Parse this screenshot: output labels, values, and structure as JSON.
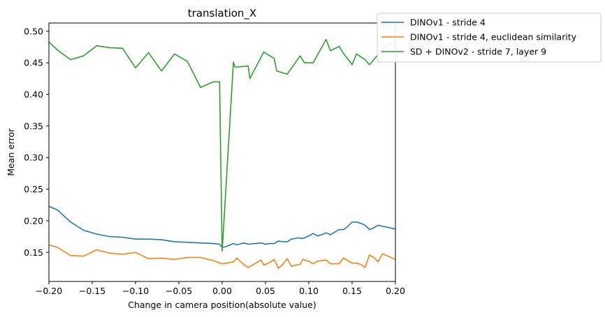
{
  "chart_data": {
    "type": "line",
    "title": "translation_X",
    "xlabel": "Change in camera position(absolute value)",
    "ylabel": "Mean error",
    "xlim": [
      -0.2,
      0.2
    ],
    "ylim": [
      0.104,
      0.513
    ],
    "xticks": [
      -0.2,
      -0.15,
      -0.1,
      -0.05,
      0.0,
      0.05,
      0.1,
      0.15,
      0.2
    ],
    "xtick_labels": [
      "−0.20",
      "−0.15",
      "−0.10",
      "−0.05",
      "0.00",
      "0.05",
      "0.10",
      "0.15",
      "0.20"
    ],
    "yticks": [
      0.15,
      0.2,
      0.25,
      0.3,
      0.35,
      0.4,
      0.45,
      0.5
    ],
    "ytick_labels": [
      "0.15",
      "0.20",
      "0.25",
      "0.30",
      "0.35",
      "0.40",
      "0.45",
      "0.50"
    ],
    "grid": false,
    "legend_position": "top-right, outside plot",
    "series": [
      {
        "name": "DINOv1 - stride 4",
        "color": "#1f77b4",
        "points": [
          [
            -0.2,
            0.223
          ],
          [
            -0.19,
            0.217
          ],
          [
            -0.175,
            0.198
          ],
          [
            -0.16,
            0.185
          ],
          [
            -0.145,
            0.179
          ],
          [
            -0.13,
            0.175
          ],
          [
            -0.115,
            0.174
          ],
          [
            -0.1,
            0.171
          ],
          [
            -0.085,
            0.171
          ],
          [
            -0.07,
            0.17
          ],
          [
            -0.055,
            0.167
          ],
          [
            -0.04,
            0.166
          ],
          [
            -0.025,
            0.165
          ],
          [
            -0.01,
            0.164
          ],
          [
            -0.003,
            0.163
          ],
          [
            0.0,
            0.158
          ],
          [
            0.004,
            0.159
          ],
          [
            0.013,
            0.164
          ],
          [
            0.017,
            0.162
          ],
          [
            0.025,
            0.165
          ],
          [
            0.03,
            0.163
          ],
          [
            0.038,
            0.164
          ],
          [
            0.045,
            0.165
          ],
          [
            0.05,
            0.163
          ],
          [
            0.055,
            0.164
          ],
          [
            0.06,
            0.164
          ],
          [
            0.065,
            0.168
          ],
          [
            0.07,
            0.167
          ],
          [
            0.075,
            0.167
          ],
          [
            0.08,
            0.171
          ],
          [
            0.088,
            0.173
          ],
          [
            0.093,
            0.172
          ],
          [
            0.1,
            0.176
          ],
          [
            0.105,
            0.18
          ],
          [
            0.11,
            0.176
          ],
          [
            0.115,
            0.178
          ],
          [
            0.12,
            0.181
          ],
          [
            0.125,
            0.178
          ],
          [
            0.13,
            0.182
          ],
          [
            0.135,
            0.186
          ],
          [
            0.14,
            0.186
          ],
          [
            0.145,
            0.191
          ],
          [
            0.15,
            0.198
          ],
          [
            0.155,
            0.198
          ],
          [
            0.16,
            0.196
          ],
          [
            0.165,
            0.193
          ],
          [
            0.17,
            0.186
          ],
          [
            0.175,
            0.189
          ],
          [
            0.18,
            0.193
          ],
          [
            0.19,
            0.19
          ],
          [
            0.2,
            0.187
          ]
        ]
      },
      {
        "name": "DINOv1 - stride 4, euclidean similarity",
        "color": "#ff7f0e",
        "points": [
          [
            -0.2,
            0.162
          ],
          [
            -0.19,
            0.158
          ],
          [
            -0.175,
            0.145
          ],
          [
            -0.16,
            0.144
          ],
          [
            -0.145,
            0.154
          ],
          [
            -0.13,
            0.149
          ],
          [
            -0.115,
            0.147
          ],
          [
            -0.1,
            0.15
          ],
          [
            -0.085,
            0.14
          ],
          [
            -0.07,
            0.141
          ],
          [
            -0.055,
            0.139
          ],
          [
            -0.04,
            0.142
          ],
          [
            -0.025,
            0.142
          ],
          [
            -0.01,
            0.137
          ],
          [
            0.0,
            0.132
          ],
          [
            0.013,
            0.135
          ],
          [
            0.017,
            0.141
          ],
          [
            0.023,
            0.133
          ],
          [
            0.03,
            0.126
          ],
          [
            0.035,
            0.13
          ],
          [
            0.045,
            0.138
          ],
          [
            0.048,
            0.13
          ],
          [
            0.055,
            0.134
          ],
          [
            0.06,
            0.139
          ],
          [
            0.065,
            0.125
          ],
          [
            0.07,
            0.131
          ],
          [
            0.075,
            0.14
          ],
          [
            0.08,
            0.128
          ],
          [
            0.085,
            0.13
          ],
          [
            0.09,
            0.131
          ],
          [
            0.093,
            0.139
          ],
          [
            0.1,
            0.136
          ],
          [
            0.105,
            0.132
          ],
          [
            0.11,
            0.136
          ],
          [
            0.115,
            0.137
          ],
          [
            0.12,
            0.138
          ],
          [
            0.125,
            0.132
          ],
          [
            0.13,
            0.132
          ],
          [
            0.135,
            0.132
          ],
          [
            0.14,
            0.141
          ],
          [
            0.145,
            0.137
          ],
          [
            0.15,
            0.133
          ],
          [
            0.155,
            0.133
          ],
          [
            0.16,
            0.131
          ],
          [
            0.165,
            0.126
          ],
          [
            0.17,
            0.146
          ],
          [
            0.175,
            0.142
          ],
          [
            0.18,
            0.135
          ],
          [
            0.185,
            0.148
          ],
          [
            0.19,
            0.145
          ],
          [
            0.2,
            0.139
          ]
        ]
      },
      {
        "name": "SD + DINOv2 - stride 7, layer 9",
        "color": "#2ca02c",
        "points": [
          [
            -0.2,
            0.483
          ],
          [
            -0.19,
            0.47
          ],
          [
            -0.175,
            0.455
          ],
          [
            -0.16,
            0.461
          ],
          [
            -0.145,
            0.477
          ],
          [
            -0.13,
            0.474
          ],
          [
            -0.115,
            0.473
          ],
          [
            -0.1,
            0.442
          ],
          [
            -0.085,
            0.466
          ],
          [
            -0.07,
            0.437
          ],
          [
            -0.055,
            0.464
          ],
          [
            -0.04,
            0.452
          ],
          [
            -0.025,
            0.411
          ],
          [
            -0.01,
            0.42
          ],
          [
            -0.003,
            0.42
          ],
          [
            0.0,
            0.152
          ],
          [
            0.013,
            0.451
          ],
          [
            0.015,
            0.443
          ],
          [
            0.03,
            0.445
          ],
          [
            0.032,
            0.425
          ],
          [
            0.048,
            0.467
          ],
          [
            0.06,
            0.457
          ],
          [
            0.063,
            0.437
          ],
          [
            0.075,
            0.432
          ],
          [
            0.09,
            0.461
          ],
          [
            0.095,
            0.45
          ],
          [
            0.105,
            0.45
          ],
          [
            0.12,
            0.487
          ],
          [
            0.125,
            0.469
          ],
          [
            0.135,
            0.476
          ],
          [
            0.14,
            0.465
          ],
          [
            0.15,
            0.447
          ],
          [
            0.155,
            0.464
          ],
          [
            0.165,
            0.455
          ],
          [
            0.17,
            0.447
          ],
          [
            0.18,
            0.463
          ],
          [
            0.19,
            0.478
          ],
          [
            0.2,
            0.479
          ]
        ]
      }
    ]
  }
}
